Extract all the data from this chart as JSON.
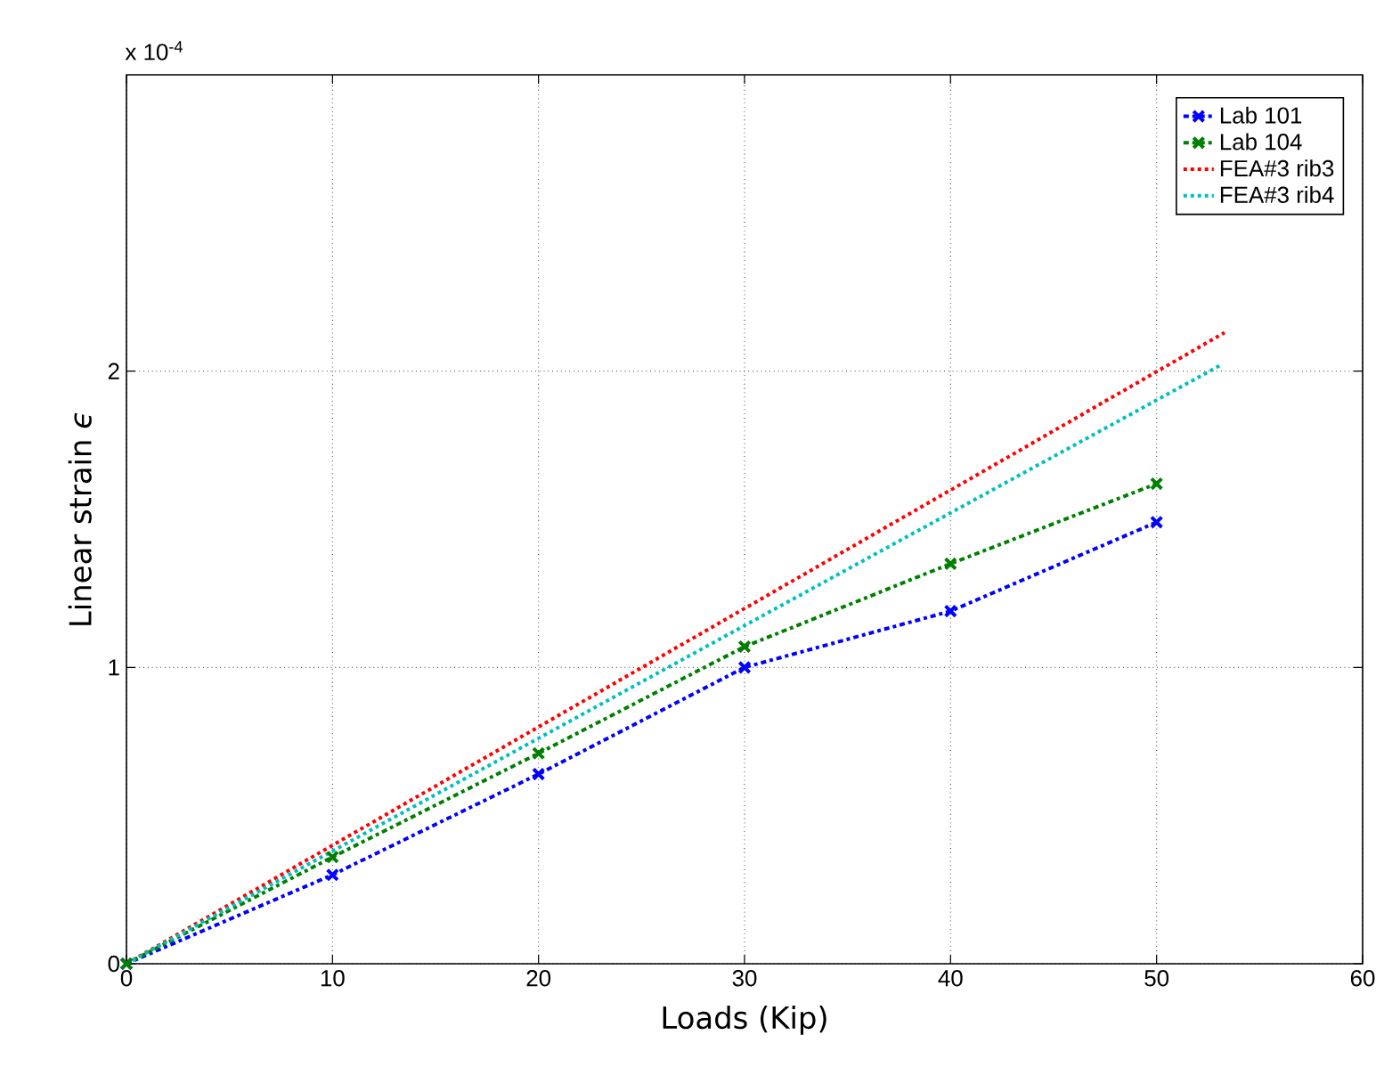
{
  "chart_data": {
    "type": "line",
    "xlabel": "Loads (Kip)",
    "ylabel": "Linear strain *ϵ*",
    "annotations": [
      "x 10$^{-4}$"
    ],
    "xlim": [
      0,
      60
    ],
    "xticks": [
      0,
      10,
      20,
      30,
      40,
      50,
      60
    ],
    "ylim": [
      0,
      3
    ],
    "yticks": [
      0,
      1,
      2
    ],
    "grid": true,
    "legend": "top right",
    "series": [
      {
        "name": "Lab 101",
        "color": "#0000ff",
        "x": [
          0,
          10,
          20,
          30,
          40,
          50
        ],
        "values": [
          0,
          0.3,
          0.64,
          1.0,
          1.19,
          1.49
        ],
        "marker": "cross",
        "line_style": "dashdot"
      },
      {
        "name": "Lab 104",
        "color": "#008000",
        "x": [
          0,
          10,
          20,
          30,
          40,
          50
        ],
        "values": [
          0,
          0.36,
          0.71,
          1.07,
          1.35,
          1.62
        ],
        "marker": "cross",
        "line_style": "dashdot"
      },
      {
        "name": "FEA#3 rib3",
        "color": "#ff0000",
        "x": [
          0,
          53.3
        ],
        "values": [
          0,
          2.13
        ],
        "marker": "none",
        "line_style": "dotted"
      },
      {
        "name": "FEA#3 rib4",
        "color": "#00bfbf",
        "x": [
          0,
          53.1
        ],
        "values": [
          0,
          2.02
        ],
        "marker": "none",
        "line_style": "dotted"
      }
    ]
  }
}
